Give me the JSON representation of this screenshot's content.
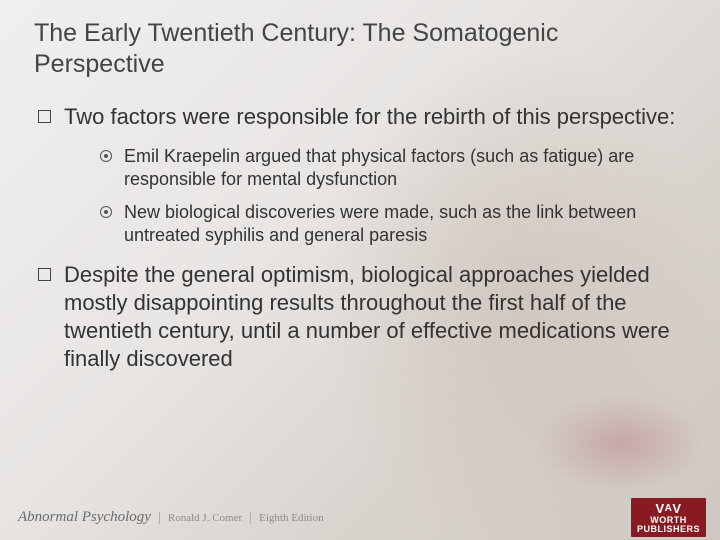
{
  "colors": {
    "text": "#333333",
    "title": "#444444",
    "badge_bg": "#8a1a22",
    "badge_text": "#ffffff",
    "meta_text": "#8a8a8a"
  },
  "typography": {
    "title_fontsize_pt": 19,
    "level1_fontsize_pt": 17,
    "level2_fontsize_pt": 14,
    "footer_title_fontsize_pt": 11,
    "footer_meta_fontsize_pt": 8,
    "badge_fontsize_pt": 7
  },
  "title": "The Early Twentieth Century: The Somatogenic Perspective",
  "bullets": [
    {
      "text": "Two factors were responsible for the rebirth of this perspective:",
      "children": [
        {
          "text": "Emil Kraepelin argued that physical factors (such as fatigue) are responsible for mental dysfunction"
        },
        {
          "text": "New biological discoveries were made, such as the link between untreated syphilis and general paresis"
        }
      ]
    },
    {
      "text": "Despite the general optimism, biological approaches yielded mostly disappointing results throughout the first half of the twentieth century, until a number of effective medications were finally discovered",
      "children": []
    }
  ],
  "footer": {
    "book_title": "Abnormal Psychology",
    "author": "Ronald J. Comer",
    "edition": "Eighth Edition",
    "publisher_top": "WORTH",
    "publisher_bottom": "PUBLISHERS"
  }
}
